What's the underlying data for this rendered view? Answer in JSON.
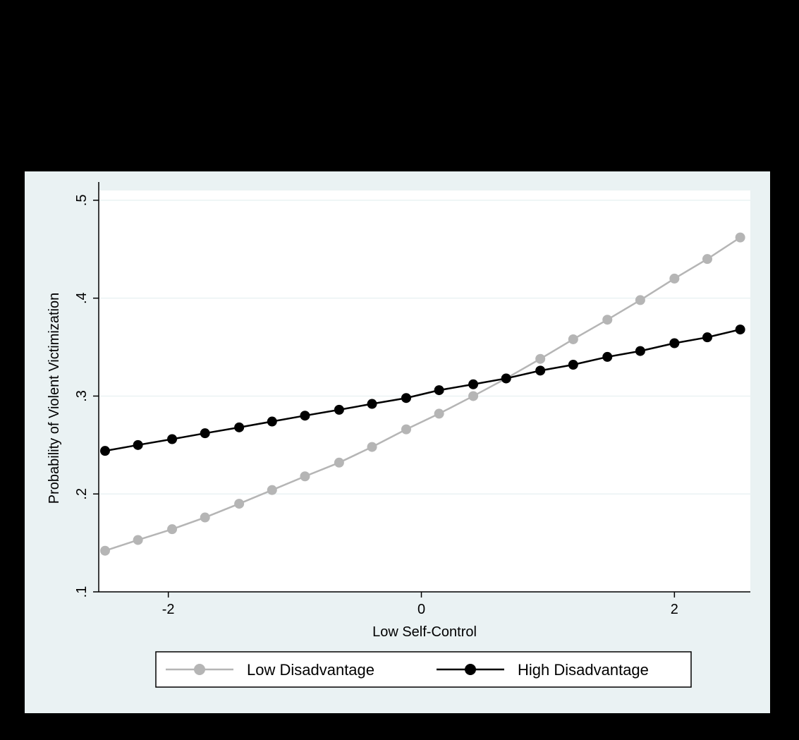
{
  "chart_data": {
    "type": "line",
    "title": "",
    "xlabel": "Low Self-Control",
    "ylabel": "Probability of Violent Victimization",
    "xlim": [
      -2.55,
      2.6
    ],
    "ylim": [
      0.1,
      0.51
    ],
    "x_ticks": [
      -2,
      0,
      2
    ],
    "x_tick_labels": [
      "-2",
      "0",
      "2"
    ],
    "y_ticks": [
      0.1,
      0.2,
      0.3,
      0.4,
      0.5
    ],
    "y_tick_labels": [
      ".1",
      ".2",
      ".3",
      ".4",
      ".5"
    ],
    "grid": true,
    "legend_position": "bottom",
    "x": [
      -2.5,
      -2.24,
      -1.97,
      -1.71,
      -1.44,
      -1.18,
      -0.92,
      -0.65,
      -0.39,
      -0.12,
      0.14,
      0.41,
      0.67,
      0.94,
      1.2,
      1.47,
      1.73,
      2.0,
      2.26,
      2.52
    ],
    "series": [
      {
        "name": "Low Disadvantage",
        "color": "#b5b5b5",
        "values": [
          0.142,
          0.153,
          0.164,
          0.176,
          0.19,
          0.204,
          0.218,
          0.232,
          0.248,
          0.266,
          0.282,
          0.3,
          0.318,
          0.338,
          0.358,
          0.378,
          0.398,
          0.42,
          0.44,
          0.462
        ]
      },
      {
        "name": "High Disadvantage",
        "color": "#000000",
        "values": [
          0.244,
          0.25,
          0.256,
          0.262,
          0.268,
          0.274,
          0.28,
          0.286,
          0.292,
          0.298,
          0.306,
          0.312,
          0.318,
          0.326,
          0.332,
          0.34,
          0.346,
          0.354,
          0.36,
          0.368
        ]
      }
    ]
  }
}
